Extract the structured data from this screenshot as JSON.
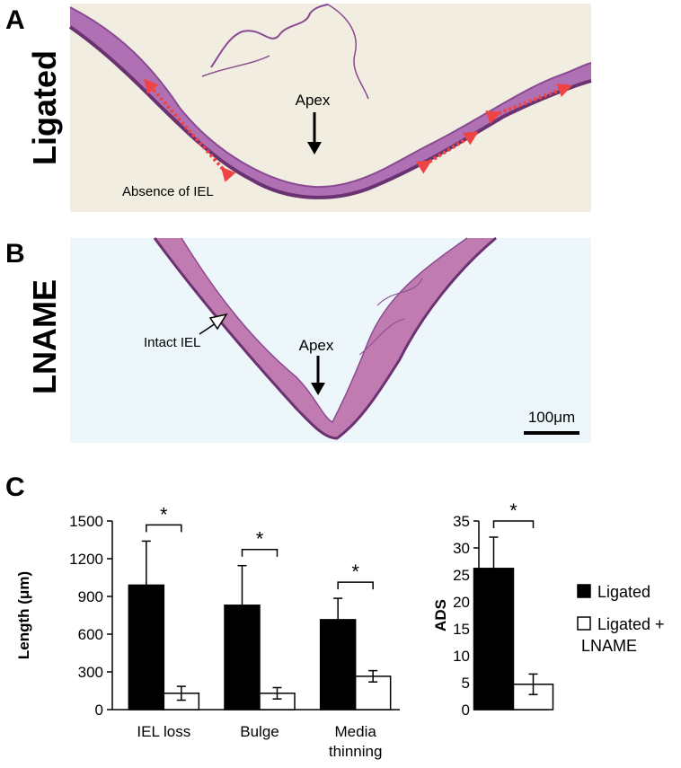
{
  "panels": {
    "a": {
      "letter": "A",
      "row_label": "Ligated",
      "apex_label": "Apex",
      "annotation": "Absence of IEL",
      "arrow_color": "#ee4444"
    },
    "b": {
      "letter": "B",
      "row_label": "LNAME",
      "apex_label": "Apex",
      "annotation": "Intact IEL",
      "scale_bar_label": "100μm"
    },
    "c": {
      "letter": "C"
    }
  },
  "tissue_colors": {
    "tissue": "#b070b4",
    "tissue_dark": "#6b3272",
    "background_a": "#f1ede0",
    "background_b": "#edf6fa"
  },
  "chart_data": [
    {
      "type": "bar",
      "categories": [
        "IEL loss",
        "Bulge",
        "Media thinning"
      ],
      "category_lines": [
        [
          "IEL loss"
        ],
        [
          "Bulge"
        ],
        [
          "Media",
          "thinning"
        ]
      ],
      "series": [
        {
          "name": "Ligated",
          "values": [
            990,
            830,
            715
          ],
          "errors": [
            350,
            315,
            170
          ],
          "color": "#000000"
        },
        {
          "name": "Ligated + LNAME",
          "values": [
            130,
            130,
            265
          ],
          "errors": [
            55,
            45,
            45
          ],
          "color": "#ffffff"
        }
      ],
      "significance": [
        "*",
        "*",
        "*"
      ],
      "ylabel": "Length (μm)",
      "ylim": [
        0,
        1500
      ],
      "yticks": [
        0,
        300,
        600,
        900,
        1200,
        1500
      ],
      "ytick_labels": [
        "0",
        "300",
        "600",
        "900",
        "1200",
        "1500"
      ],
      "grid": false
    },
    {
      "type": "bar",
      "categories": [
        ""
      ],
      "series": [
        {
          "name": "Ligated",
          "values": [
            26.2
          ],
          "errors": [
            5.8
          ],
          "color": "#000000"
        },
        {
          "name": "Ligated + LNAME",
          "values": [
            4.7
          ],
          "errors": [
            1.9
          ],
          "color": "#ffffff"
        }
      ],
      "significance": [
        "*"
      ],
      "ylabel": "ADS",
      "ylim": [
        0,
        35
      ],
      "yticks": [
        0,
        5,
        10,
        15,
        20,
        25,
        30,
        35
      ],
      "ytick_labels": [
        "0",
        "5",
        "10",
        "15",
        "20",
        "25",
        "30",
        "35"
      ],
      "grid": false,
      "legend": {
        "placement": "right",
        "entries": [
          {
            "lines": [
              "Ligated"
            ],
            "color": "#000000"
          },
          {
            "lines": [
              "Ligated +",
              "LNAME"
            ],
            "color": "#ffffff"
          }
        ]
      }
    }
  ]
}
